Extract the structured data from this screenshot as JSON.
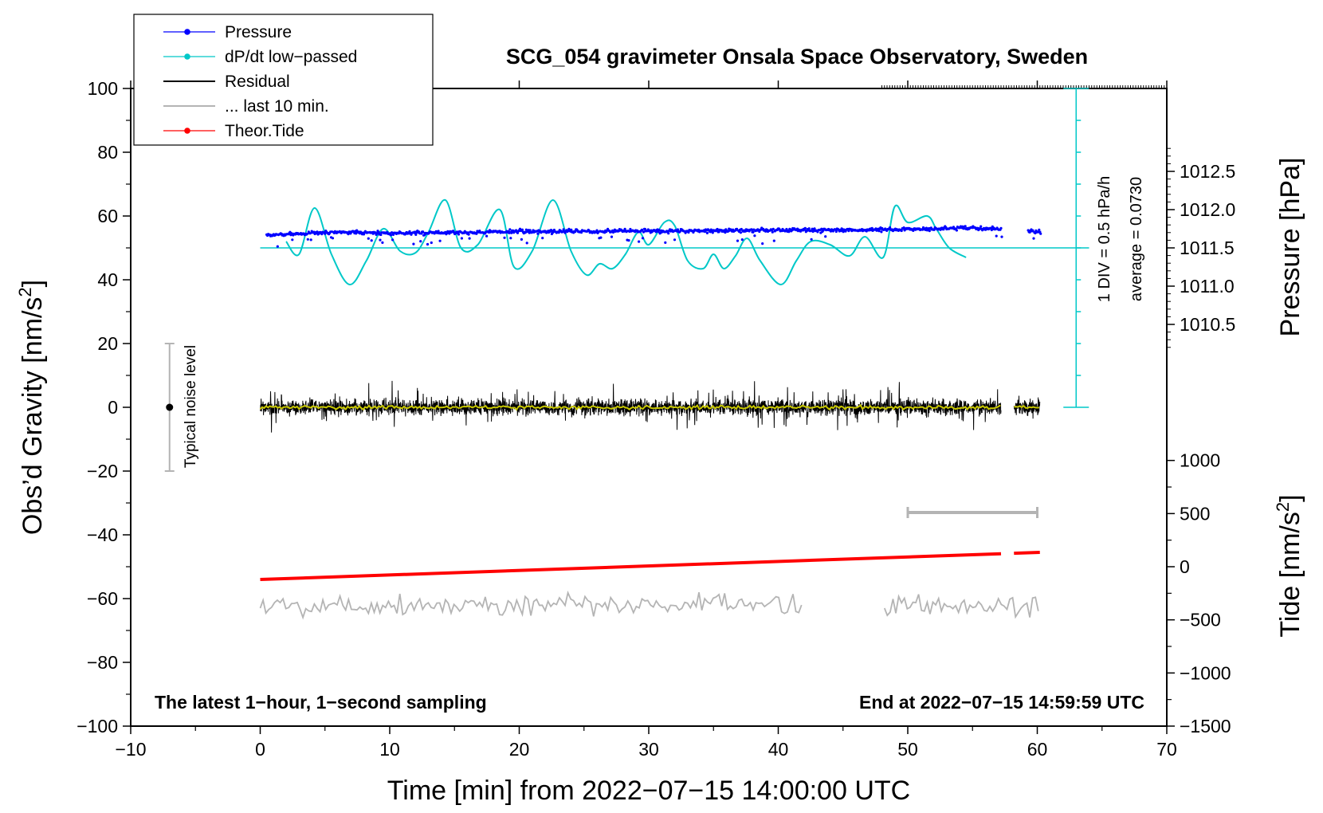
{
  "chart_data": {
    "type": "line",
    "title": "SCG_054 gravimeter Onsala Space Observatory, Sweden",
    "xlabel": "Time [min] from 2022−07−15 14:00:00 UTC",
    "ylabel": "Obs’d Gravity [nm/s²]",
    "ylabel_parts": {
      "main": "Obs’d Gravity [nm/s",
      "sup": "2",
      "end": "]"
    },
    "xlim": [
      -10,
      70
    ],
    "ylim": [
      -100,
      100
    ],
    "xticks": [
      -10,
      0,
      10,
      20,
      30,
      40,
      50,
      60,
      70
    ],
    "xtick_labels": [
      "−10",
      "0",
      "10",
      "20",
      "30",
      "40",
      "50",
      "60",
      "70"
    ],
    "yticks": [
      -100,
      -80,
      -60,
      -40,
      -20,
      0,
      20,
      40,
      60,
      80,
      100
    ],
    "ytick_labels": [
      "−100",
      "−80",
      "−60",
      "−40",
      "−20",
      "0",
      "20",
      "40",
      "60",
      "80",
      "100"
    ],
    "pressure_axis": {
      "label": "Pressure [hPa]",
      "ticks": [
        1010.5,
        1011.0,
        1011.5,
        1012.0,
        1012.5
      ],
      "tick_labels": [
        "1010.5",
        "1011.0",
        "1011.5",
        "1012.0",
        "1012.5"
      ],
      "ref_value": 1011.5,
      "ref_gravity": 50,
      "gravity_per_hpa": 24
    },
    "tide_axis": {
      "label": "Tide [nm/s²]",
      "label_parts": {
        "main": "Tide [nm/s",
        "sup": "2",
        "end": "]"
      },
      "ticks": [
        1000,
        500,
        0,
        -500,
        -1000,
        -1500
      ],
      "tick_labels": [
        "1000",
        "500",
        "0",
        "−500",
        "−1000",
        "−1500"
      ],
      "ref_value": 0,
      "ref_gravity": -50,
      "gravity_per_unit": 0.03333
    },
    "dpdt_scale": {
      "label": "1 DIV = 0.5 hPa/h",
      "average_label": "average = 0.0730",
      "x": 63,
      "y_range": [
        0,
        100
      ],
      "div_step": 10
    },
    "legend": [
      {
        "label": "Pressure",
        "color": "#0000ff",
        "style": "line-dot"
      },
      {
        "label": "dP/dt low−passed",
        "color": "#00c8c8",
        "style": "line-dot"
      },
      {
        "label": "Residual",
        "color": "#000000",
        "style": "line"
      },
      {
        "label": "... last 10 min.",
        "color": "#b4b4b4",
        "style": "line"
      },
      {
        "label": "Theor.Tide",
        "color": "#ff0000",
        "style": "line-dot"
      }
    ],
    "noise_bar": {
      "label": "Typical noise level",
      "x": -7,
      "y": 0,
      "range": [
        -20,
        20
      ]
    },
    "last_10min_bar": {
      "x_range": [
        50,
        60
      ],
      "y": -33
    },
    "footer_left": "The latest 1−hour, 1−second sampling",
    "footer_right": "End at 2022−07−15 14:59:59 UTC",
    "series": [
      {
        "name": "Pressure",
        "axis": "gravity",
        "color": "#0000ff",
        "x": [
          0.5,
          2,
          4,
          6,
          8,
          10,
          12,
          14,
          16,
          18,
          20,
          22,
          24,
          26,
          28,
          30,
          32,
          34,
          36,
          38,
          40,
          42,
          44,
          46,
          48,
          50,
          52,
          54,
          56,
          57.3,
          59.3,
          60.3
        ],
        "y": [
          54,
          54.2,
          54.6,
          55,
          54.8,
          54.7,
          54.6,
          54.9,
          54.8,
          55,
          55.2,
          55.1,
          55.3,
          55.2,
          55.4,
          55.3,
          55.2,
          55.5,
          55.4,
          55.5,
          55.6,
          55.6,
          55.5,
          55.6,
          55.7,
          55.9,
          56,
          56.2,
          56.1,
          56,
          55,
          55.2
        ]
      },
      {
        "name": "dP/dt low-passed",
        "axis": "gravity",
        "color": "#00c8c8",
        "x": [
          2,
          3,
          4.2,
          5.5,
          6.9,
          8.2,
          9.5,
          10.8,
          12,
          13,
          14.3,
          15.5,
          16.8,
          18.5,
          19.6,
          21,
          22.6,
          24,
          25.2,
          26.2,
          27.2,
          28.2,
          29.2,
          30,
          31.2,
          32,
          33,
          34.2,
          35,
          35.8,
          36.7,
          37.6,
          38.6,
          40.2,
          41.4,
          42.5,
          44,
          45.5,
          46.7,
          48.1,
          49,
          50,
          51.5,
          52.2,
          53.2,
          54.5
        ],
        "y": [
          52,
          48,
          62.5,
          48,
          38.5,
          46,
          56,
          49,
          48.5,
          55,
          65,
          50,
          51,
          62,
          44,
          49,
          65,
          49,
          41.5,
          45,
          43.5,
          48,
          55,
          51,
          58,
          57,
          46,
          43.5,
          48,
          43.5,
          47.5,
          53,
          46,
          38.5,
          46,
          52,
          51,
          47.5,
          53.5,
          47,
          63,
          58,
          60,
          56,
          50,
          47
        ]
      },
      {
        "name": "Residual",
        "axis": "gravity",
        "color": "#000000",
        "segments": [
          [
            0,
            57.2
          ],
          [
            58.2,
            60.2
          ]
        ],
        "mean": 0,
        "noise_amplitude": 8
      },
      {
        "name": "Residual (smoothed)",
        "axis": "gravity",
        "color": "#c8c800",
        "segments": [
          [
            0,
            57.2
          ],
          [
            58.2,
            60.2
          ]
        ],
        "mean": 0
      },
      {
        "name": "... last 10 min.",
        "axis": "gravity",
        "color": "#b4b4b4",
        "segments": [
          [
            0,
            42
          ],
          [
            48.2,
            60.1
          ]
        ],
        "mean": -62,
        "noise_amplitude": 7
      },
      {
        "name": "Theor.Tide",
        "axis": "gravity",
        "color": "#ff0000",
        "segments": [
          [
            0,
            57.2
          ],
          [
            58.2,
            60.2
          ]
        ],
        "y_start": -54,
        "y_end": -45.5
      }
    ]
  }
}
